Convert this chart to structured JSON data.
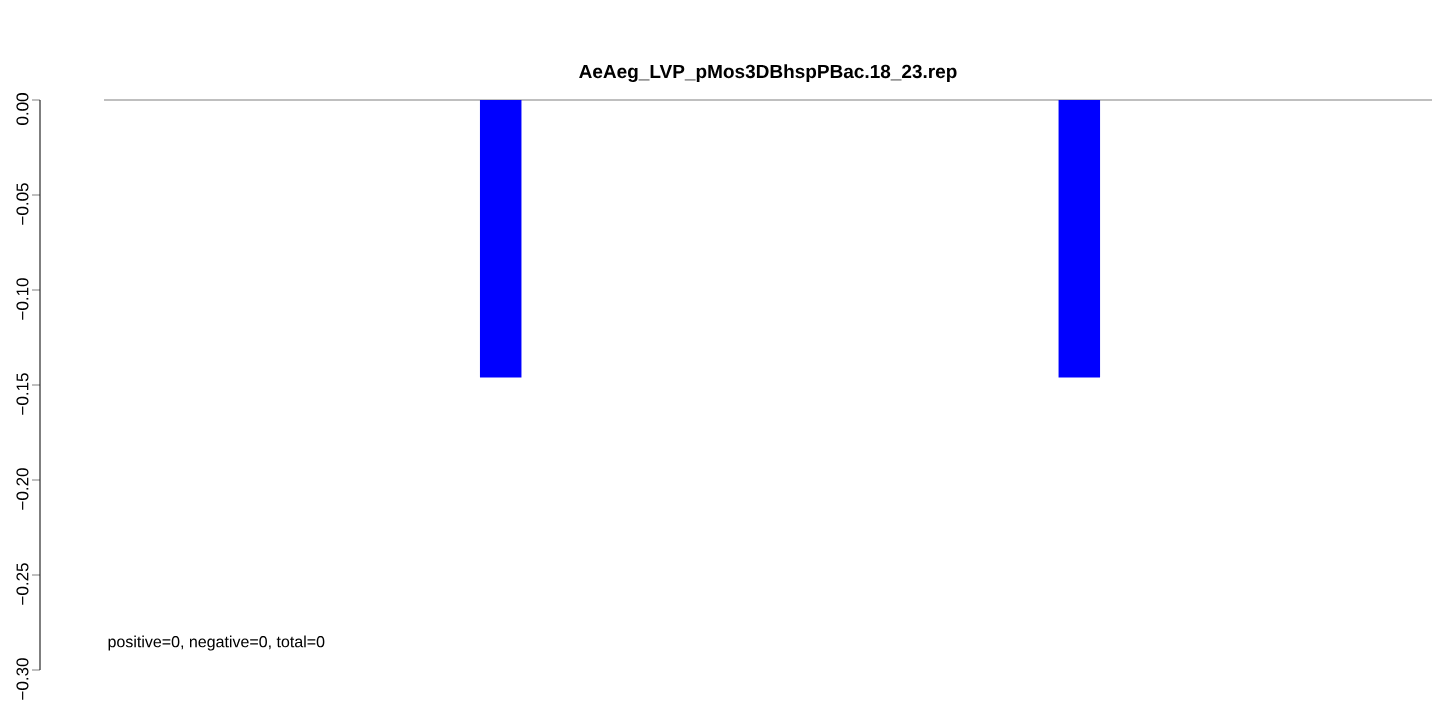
{
  "chart_data": {
    "type": "bar",
    "title": "AeAeg_LVP_pMos3DBhspPBac.18_23.rep",
    "categories": [
      null,
      null
    ],
    "values": [
      -0.146,
      -0.146
    ],
    "color": "#0000ff",
    "ylim": [
      -0.3,
      0
    ],
    "yticks": [
      {
        "value": 0,
        "label": "0.00"
      },
      {
        "value": -0.05,
        "label": "−0.05"
      },
      {
        "value": -0.1,
        "label": "−0.10"
      },
      {
        "value": -0.15,
        "label": "−0.15"
      },
      {
        "value": -0.2,
        "label": "−0.20"
      },
      {
        "value": -0.25,
        "label": "−0.25"
      },
      {
        "value": -0.3,
        "label": "−0.30"
      }
    ],
    "tick_labels": "y",
    "ref_lines": [
      {
        "axis": "y",
        "value": 0,
        "color": "#808080"
      }
    ],
    "annotations": [
      "positive=0, negative=0, total=0"
    ]
  }
}
